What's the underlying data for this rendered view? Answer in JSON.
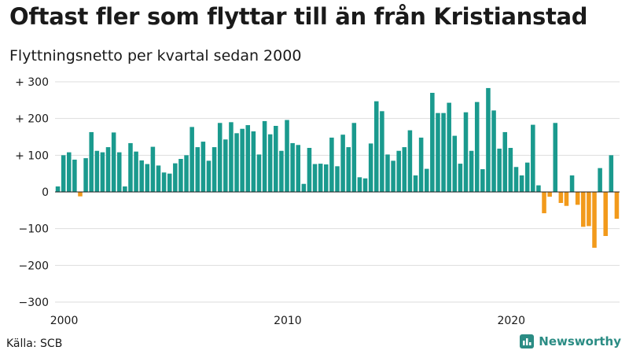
{
  "title": "Oftast fler som flyttar till än från Kristianstad",
  "subtitle": "Flyttningsnetto per kvartal sedan 2000",
  "source": "Källa: SCB",
  "brand": "Newsworthy",
  "colors": {
    "positive": "#1a9a8e",
    "negative": "#f29a1b",
    "grid": "#dddddd",
    "zero_line": "#222222",
    "brand": "#2b8c84"
  },
  "chart_data": {
    "type": "bar",
    "title": "Oftast fler som flyttar till än från Kristianstad",
    "subtitle": "Flyttningsnetto per kvartal sedan 2000",
    "x_start_year": 2000,
    "x_ticks": [
      2000,
      2010,
      2020
    ],
    "y_ticks": [
      300,
      200,
      100,
      0,
      -100,
      -200,
      -300
    ],
    "y_tick_labels": [
      "+ 300",
      "+ 200",
      "+ 100",
      "0",
      "−100",
      "−200",
      "−300"
    ],
    "ylim": [
      -300,
      300
    ],
    "grid": true,
    "values": [
      15,
      100,
      108,
      88,
      -12,
      92,
      163,
      112,
      108,
      122,
      162,
      108,
      15,
      133,
      110,
      86,
      76,
      123,
      72,
      53,
      50,
      78,
      90,
      100,
      177,
      122,
      137,
      85,
      122,
      188,
      143,
      190,
      160,
      172,
      182,
      165,
      102,
      193,
      157,
      180,
      112,
      196,
      133,
      128,
      22,
      120,
      76,
      77,
      75,
      148,
      70,
      156,
      122,
      188,
      40,
      37,
      132,
      247,
      220,
      102,
      85,
      112,
      122,
      168,
      45,
      148,
      63,
      270,
      215,
      215,
      243,
      153,
      77,
      217,
      112,
      245,
      62,
      283,
      222,
      118,
      163,
      120,
      68,
      45,
      80,
      183,
      18,
      -58,
      -13,
      188,
      -30,
      -38,
      45,
      -35,
      -95,
      -93,
      -152,
      65,
      -120,
      100,
      -73
    ]
  }
}
